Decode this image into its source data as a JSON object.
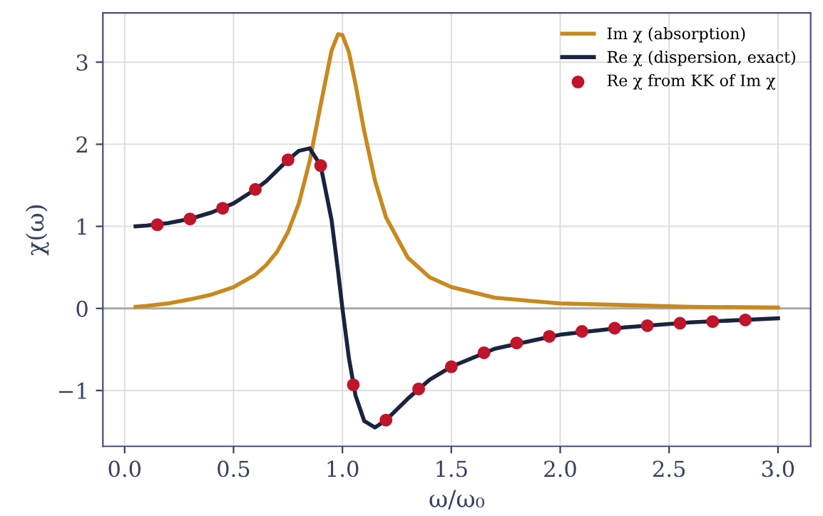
{
  "chart_data": {
    "type": "line",
    "xlabel": "ω/ω₀",
    "ylabel": "χ(ω)",
    "series": [
      {
        "name": "Im χ (absorption)",
        "color": "#c8891e",
        "marker": "none",
        "x": [
          0.05,
          0.1,
          0.2,
          0.3,
          0.4,
          0.5,
          0.6,
          0.65,
          0.7,
          0.75,
          0.8,
          0.85,
          0.9,
          0.95,
          0.98,
          1.0,
          1.03,
          1.06,
          1.1,
          1.15,
          1.2,
          1.3,
          1.4,
          1.5,
          1.7,
          2.0,
          2.3,
          2.6,
          3.0
        ],
        "values": [
          0.02,
          0.03,
          0.06,
          0.11,
          0.17,
          0.26,
          0.41,
          0.53,
          0.69,
          0.93,
          1.28,
          1.8,
          2.48,
          3.14,
          3.34,
          3.33,
          3.12,
          2.73,
          2.16,
          1.55,
          1.11,
          0.62,
          0.38,
          0.26,
          0.13,
          0.06,
          0.04,
          0.02,
          0.01
        ]
      },
      {
        "name": "Re χ (dispersion, exact)",
        "color": "#1a2340",
        "marker": "none",
        "x": [
          0.05,
          0.1,
          0.2,
          0.3,
          0.4,
          0.5,
          0.6,
          0.65,
          0.7,
          0.75,
          0.8,
          0.85,
          0.9,
          0.95,
          0.98,
          1.0,
          1.03,
          1.06,
          1.1,
          1.15,
          1.2,
          1.3,
          1.4,
          1.5,
          1.7,
          2.0,
          2.3,
          2.6,
          3.0
        ],
        "values": [
          1.0,
          1.01,
          1.04,
          1.09,
          1.17,
          1.28,
          1.45,
          1.55,
          1.68,
          1.81,
          1.92,
          1.95,
          1.74,
          1.08,
          0.45,
          0.0,
          -0.61,
          -1.06,
          -1.37,
          -1.45,
          -1.36,
          -1.1,
          -0.87,
          -0.71,
          -0.49,
          -0.32,
          -0.23,
          -0.17,
          -0.12
        ]
      },
      {
        "name": "Re χ from KK of Im χ",
        "color": "#c0152a",
        "type": "scatter",
        "marker": "circle",
        "x": [
          0.15,
          0.3,
          0.45,
          0.6,
          0.75,
          0.9,
          1.05,
          1.2,
          1.35,
          1.5,
          1.65,
          1.8,
          1.95,
          2.1,
          2.25,
          2.4,
          2.55,
          2.7,
          2.85
        ],
        "values": [
          1.02,
          1.09,
          1.22,
          1.45,
          1.81,
          1.74,
          -0.93,
          -1.36,
          -0.98,
          -0.71,
          -0.54,
          -0.42,
          -0.34,
          -0.28,
          -0.24,
          -0.21,
          -0.18,
          -0.16,
          -0.14
        ]
      }
    ],
    "ref_lines": [
      {
        "axis": "y",
        "value": 0,
        "color": "#aaaaaa"
      }
    ],
    "xlim": [
      -0.1,
      3.15
    ],
    "ylim": [
      -1.68,
      3.6
    ],
    "xticks": [
      {
        "value": 0,
        "label": "0.0"
      },
      0.5,
      {
        "value": 1,
        "label": "1.0"
      },
      1.5,
      {
        "value": 2,
        "label": "2.0"
      },
      2.5,
      {
        "value": 3,
        "label": "3.0"
      }
    ],
    "yticks": [
      {
        "value": -1,
        "label": "−1"
      },
      0,
      1,
      2,
      3
    ],
    "grid": true,
    "legend": "top right"
  }
}
